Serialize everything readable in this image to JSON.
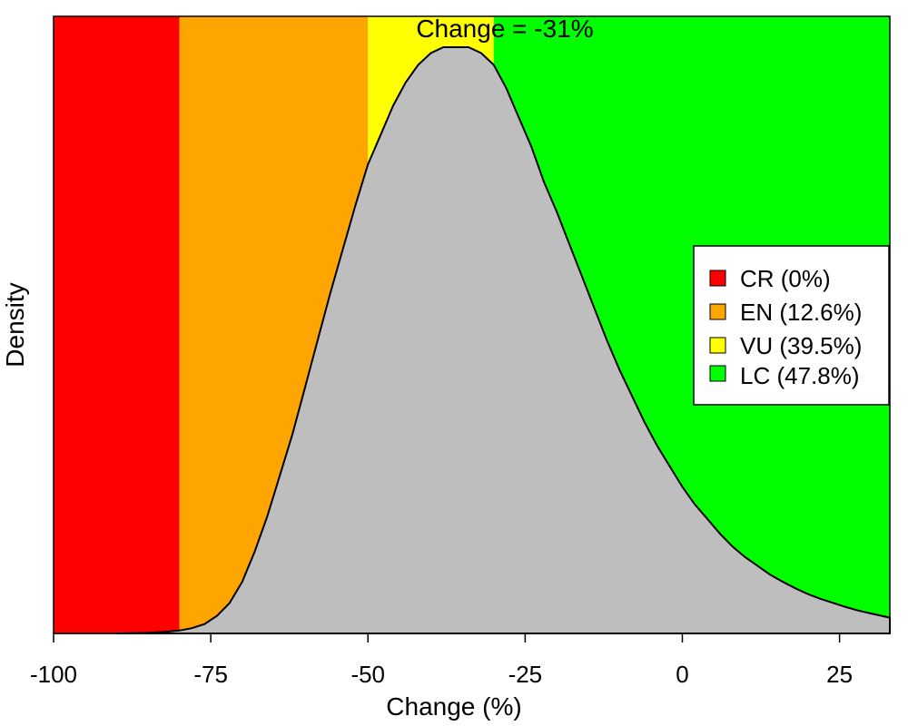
{
  "chart_data": {
    "type": "area",
    "title": "Change = -31%",
    "xlabel": "Change (%)",
    "ylabel": "Density",
    "xlim": [
      -100,
      33
    ],
    "ylim": [
      0,
      1.0
    ],
    "x_ticks": [
      -100,
      -75,
      -50,
      -25,
      0,
      25
    ],
    "x_tick_labels": [
      "-100",
      "-75",
      "-50",
      "-25",
      "0",
      "25"
    ],
    "bands": [
      {
        "name": "CR",
        "from": -100,
        "to": -80,
        "color": "#ff0000"
      },
      {
        "name": "EN",
        "from": -80,
        "to": -50,
        "color": "#ffa500"
      },
      {
        "name": "VU",
        "from": -50,
        "to": -30,
        "color": "#ffff00"
      },
      {
        "name": "LC",
        "from": -30,
        "to": 33,
        "color": "#00ff00"
      }
    ],
    "legend": {
      "position": "right",
      "items": [
        {
          "label": "CR (0%)",
          "color": "#ff0000"
        },
        {
          "label": "EN (12.6%)",
          "color": "#ffa500"
        },
        {
          "label": "VU (39.5%)",
          "color": "#ffff00"
        },
        {
          "label": "LC (47.8%)",
          "color": "#00ff00"
        }
      ]
    },
    "density_color": "#bebebe",
    "x": [
      -90,
      -85,
      -82,
      -80,
      -78,
      -76,
      -74,
      -72,
      -70,
      -68,
      -66,
      -64,
      -62,
      -60,
      -58,
      -56,
      -54,
      -52,
      -50,
      -48,
      -46,
      -44,
      -42,
      -40,
      -38,
      -36,
      -34,
      -32,
      -30,
      -28,
      -26,
      -24,
      -22,
      -20,
      -18,
      -16,
      -14,
      -12,
      -10,
      -8,
      -6,
      -4,
      -2,
      0,
      2,
      4,
      6,
      8,
      10,
      12,
      14,
      16,
      18,
      20,
      22,
      24,
      26,
      28,
      30,
      33
    ],
    "density": [
      0.0,
      0.001,
      0.003,
      0.005,
      0.009,
      0.016,
      0.03,
      0.052,
      0.088,
      0.14,
      0.2,
      0.27,
      0.34,
      0.42,
      0.5,
      0.58,
      0.655,
      0.73,
      0.8,
      0.85,
      0.9,
      0.94,
      0.97,
      0.99,
      1.0,
      1.0,
      1.0,
      0.99,
      0.97,
      0.93,
      0.88,
      0.83,
      0.77,
      0.72,
      0.665,
      0.61,
      0.555,
      0.5,
      0.45,
      0.405,
      0.36,
      0.32,
      0.285,
      0.25,
      0.22,
      0.195,
      0.17,
      0.148,
      0.13,
      0.115,
      0.1,
      0.088,
      0.077,
      0.067,
      0.059,
      0.052,
      0.045,
      0.039,
      0.034,
      0.027
    ]
  }
}
